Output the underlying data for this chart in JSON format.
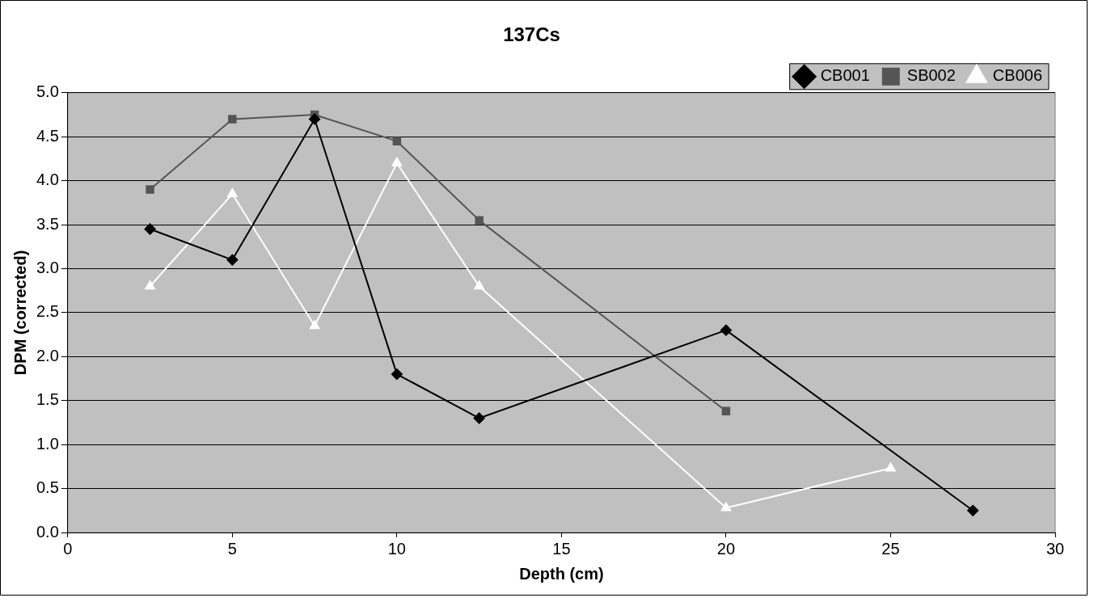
{
  "chart_data": {
    "type": "line",
    "title": "137Cs",
    "xlabel": "Depth (cm)",
    "ylabel": "DPM (corrected)",
    "xlim": [
      0,
      30
    ],
    "xticks": [
      0,
      5,
      10,
      15,
      20,
      25,
      30
    ],
    "ylim": [
      0,
      5
    ],
    "yticks": [
      {
        "value": 0,
        "label": "0.0"
      },
      {
        "value": 0.5,
        "label": "0.5"
      },
      {
        "value": 1,
        "label": "1.0"
      },
      {
        "value": 1.5,
        "label": "1.5"
      },
      {
        "value": 2,
        "label": "2.0"
      },
      {
        "value": 2.5,
        "label": "2.5"
      },
      {
        "value": 3,
        "label": "3.0"
      },
      {
        "value": 3.5,
        "label": "3.5"
      },
      {
        "value": 4,
        "label": "4.0"
      },
      {
        "value": 4.5,
        "label": "4.5"
      },
      {
        "value": 5,
        "label": "5.0"
      }
    ],
    "grid": "y",
    "legend": "top right",
    "line_style": "solid",
    "series": [
      {
        "name": "CB001",
        "color": "#000000",
        "marker": "diamond",
        "x": [
          2.5,
          5,
          7.5,
          10,
          12.5,
          20,
          27.5
        ],
        "values": [
          3.45,
          3.1,
          4.7,
          1.8,
          1.3,
          2.3,
          0.25
        ]
      },
      {
        "name": "SB002",
        "color": "#555555",
        "marker": "square",
        "x": [
          2.5,
          5,
          7.5,
          10,
          12.5,
          20
        ],
        "values": [
          3.9,
          4.7,
          4.75,
          4.45,
          3.55,
          1.38
        ]
      },
      {
        "name": "CB006",
        "color": "#ffffff",
        "marker": "triangle",
        "x": [
          2.5,
          5,
          7.5,
          10,
          12.5,
          20,
          25
        ],
        "values": [
          2.8,
          3.85,
          2.35,
          4.2,
          2.8,
          0.28,
          0.73
        ]
      }
    ]
  }
}
